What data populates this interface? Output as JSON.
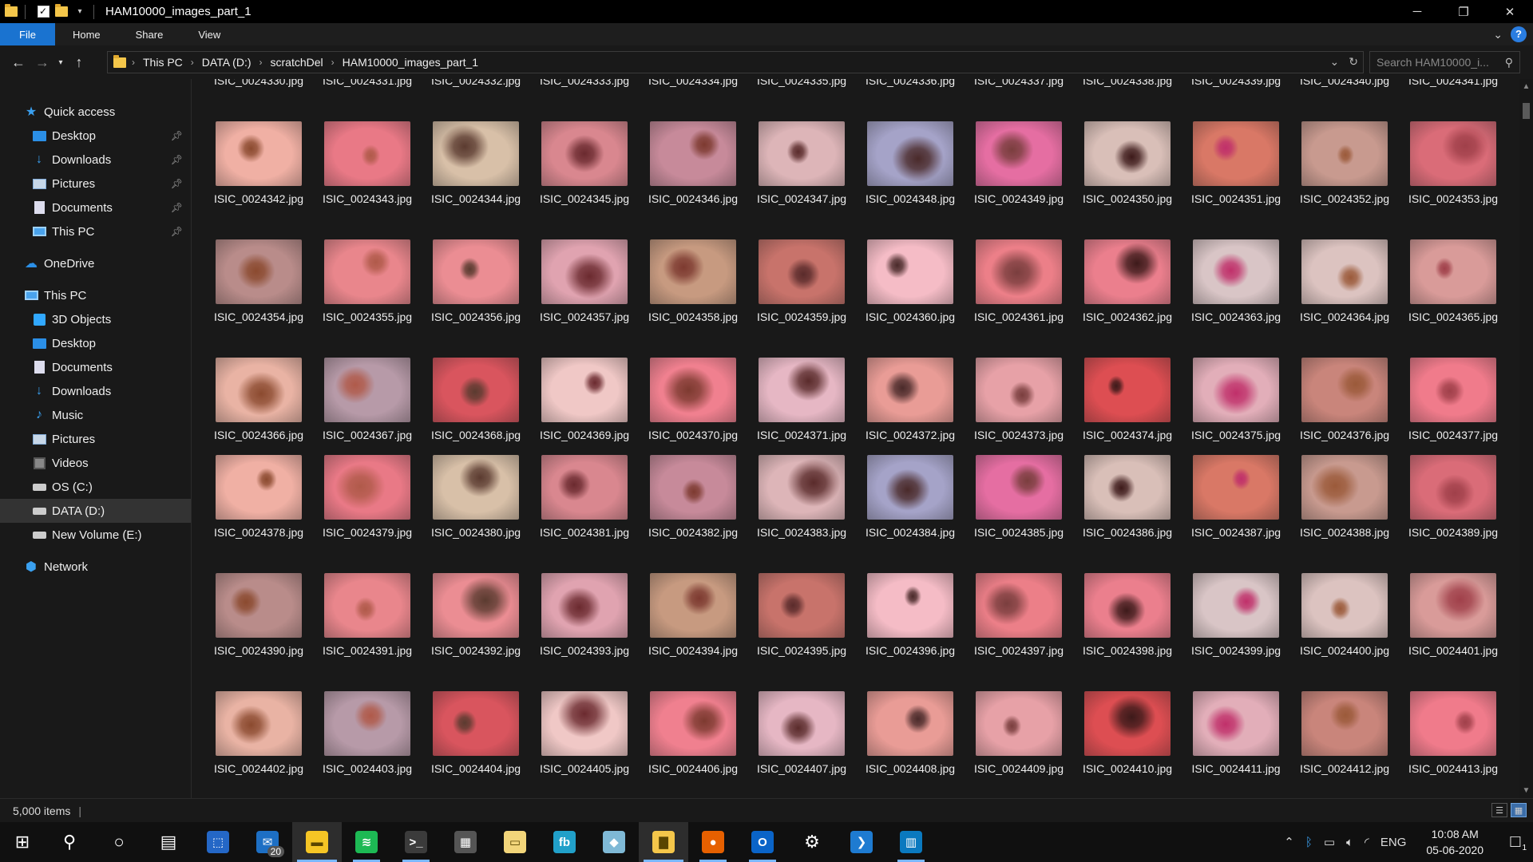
{
  "window": {
    "title": "HAM10000_images_part_1",
    "controls": {
      "minimize": "─",
      "restore": "❐",
      "close": "✕"
    }
  },
  "ribbon": {
    "tabs": [
      "File",
      "Home",
      "Share",
      "View"
    ]
  },
  "address": {
    "crumbs": [
      "This PC",
      "DATA (D:)",
      "scratchDel",
      "HAM10000_images_part_1"
    ],
    "search_placeholder": "Search HAM10000_i..."
  },
  "sidebar": {
    "items": [
      {
        "label": "Quick access",
        "icon": "star-icon",
        "pinned": false,
        "selected": false,
        "level": 0
      },
      {
        "label": "Desktop",
        "icon": "desktop-icon",
        "pinned": true,
        "selected": false,
        "level": 1
      },
      {
        "label": "Downloads",
        "icon": "download-icon",
        "pinned": true,
        "selected": false,
        "level": 1
      },
      {
        "label": "Pictures",
        "icon": "pictures-icon",
        "pinned": true,
        "selected": false,
        "level": 1
      },
      {
        "label": "Documents",
        "icon": "documents-icon",
        "pinned": true,
        "selected": false,
        "level": 1
      },
      {
        "label": "This PC",
        "icon": "computer-icon",
        "pinned": true,
        "selected": false,
        "level": 1
      },
      {
        "label": "OneDrive",
        "icon": "cloud-icon",
        "pinned": false,
        "selected": false,
        "level": 0
      },
      {
        "label": "This PC",
        "icon": "computer-icon",
        "pinned": false,
        "selected": false,
        "level": 0
      },
      {
        "label": "3D Objects",
        "icon": "cube-icon",
        "pinned": false,
        "selected": false,
        "level": 1
      },
      {
        "label": "Desktop",
        "icon": "desktop-icon",
        "pinned": false,
        "selected": false,
        "level": 1
      },
      {
        "label": "Documents",
        "icon": "documents-icon",
        "pinned": false,
        "selected": false,
        "level": 1
      },
      {
        "label": "Downloads",
        "icon": "download-icon",
        "pinned": false,
        "selected": false,
        "level": 1
      },
      {
        "label": "Music",
        "icon": "music-icon",
        "pinned": false,
        "selected": false,
        "level": 1
      },
      {
        "label": "Pictures",
        "icon": "pictures-icon",
        "pinned": false,
        "selected": false,
        "level": 1
      },
      {
        "label": "Videos",
        "icon": "videos-icon",
        "pinned": false,
        "selected": false,
        "level": 1
      },
      {
        "label": "OS (C:)",
        "icon": "drive-icon",
        "pinned": false,
        "selected": false,
        "level": 1
      },
      {
        "label": "DATA (D:)",
        "icon": "drive-icon",
        "pinned": false,
        "selected": true,
        "level": 1
      },
      {
        "label": "New Volume (E:)",
        "icon": "drive-icon",
        "pinned": false,
        "selected": false,
        "level": 1
      },
      {
        "label": "Network",
        "icon": "network-icon",
        "pinned": false,
        "selected": false,
        "level": 0
      }
    ]
  },
  "files": {
    "first_number": 24330,
    "count": 84,
    "prefix": "ISIC_00",
    "ext": ".jpg",
    "palette": [
      "#d9878f",
      "#c9857b",
      "#e6b7c4",
      "#e9b3a4",
      "#ec7f88",
      "#eb8d93",
      "#d97866",
      "#c78a9a",
      "#f07b8b",
      "#e99c96",
      "#b79aa8",
      "#eb7f8d",
      "#e0a3b0",
      "#c89a8f",
      "#ddb5b8",
      "#f0b0a4",
      "#e7a1a7",
      "#d9555e",
      "#d9c5c6",
      "#c79a80",
      "#da6c78",
      "#a5a3c8",
      "#e97986",
      "#dd4e52",
      "#f0c8c6",
      "#dcc3c0",
      "#c8736b",
      "#b98c8a",
      "#e56ea2",
      "#d8c0a8",
      "#e2aeb9",
      "#f0808f",
      "#d99b99",
      "#f5bcc6",
      "#e9868c",
      "#d9bfb8"
    ],
    "spot_colors": [
      "#7a3e3e",
      "#8b4a2f",
      "#5a2b2b",
      "#9b5a3a",
      "#6b2a2f",
      "#3d1a1a",
      "#b05a4a",
      "#4a2a2a",
      "#a0404a",
      "#7d3a30",
      "#c0306a",
      "#5b3b30"
    ]
  },
  "status": {
    "items_count": "5,000 items"
  },
  "taskbar": {
    "apps": [
      {
        "name": "start-icon",
        "glyph": "⊞",
        "color": "transparent",
        "state": ""
      },
      {
        "name": "search-icon",
        "glyph": "⚲",
        "color": "transparent",
        "state": ""
      },
      {
        "name": "cortana-icon",
        "glyph": "○",
        "color": "transparent",
        "state": ""
      },
      {
        "name": "task-view-icon",
        "glyph": "▤",
        "color": "transparent",
        "state": ""
      },
      {
        "name": "store-icon",
        "glyph": "⬚",
        "color": "#2467c6",
        "state": ""
      },
      {
        "name": "mail-icon",
        "glyph": "✉",
        "color": "#1d6fc4",
        "state": "",
        "badge": "20"
      },
      {
        "name": "sticky-notes-icon",
        "glyph": "▬",
        "color": "#f5c525",
        "state": "active"
      },
      {
        "name": "spotify-icon",
        "glyph": "≋",
        "color": "#1db954",
        "state": "running"
      },
      {
        "name": "terminal-icon",
        "glyph": ">_",
        "color": "#3b3b3b",
        "state": "running"
      },
      {
        "name": "calculator-icon",
        "glyph": "▦",
        "color": "#555",
        "state": ""
      },
      {
        "name": "notes-icon",
        "glyph": "▭",
        "color": "#f2d57a",
        "state": ""
      },
      {
        "name": "fb-icon",
        "glyph": "fb",
        "color": "#21a0c9",
        "state": ""
      },
      {
        "name": "notepad-icon",
        "glyph": "◆",
        "color": "#7fb9d6",
        "state": ""
      },
      {
        "name": "file-explorer-icon",
        "glyph": "▇",
        "color": "#f4c64a",
        "state": "active"
      },
      {
        "name": "firefox-icon",
        "glyph": "●",
        "color": "#e66000",
        "state": "running"
      },
      {
        "name": "outlook-icon",
        "glyph": "O",
        "color": "#0a64c8",
        "state": "running"
      },
      {
        "name": "settings-icon",
        "glyph": "⚙",
        "color": "transparent",
        "state": ""
      },
      {
        "name": "vscode-icon",
        "glyph": "❯",
        "color": "#1e7bd1",
        "state": ""
      },
      {
        "name": "trello-icon",
        "glyph": "▥",
        "color": "#0a79bf",
        "state": "running"
      }
    ],
    "tray": {
      "language": "ENG",
      "time": "10:08 AM",
      "date": "05-06-2020",
      "notifications": "1"
    }
  }
}
